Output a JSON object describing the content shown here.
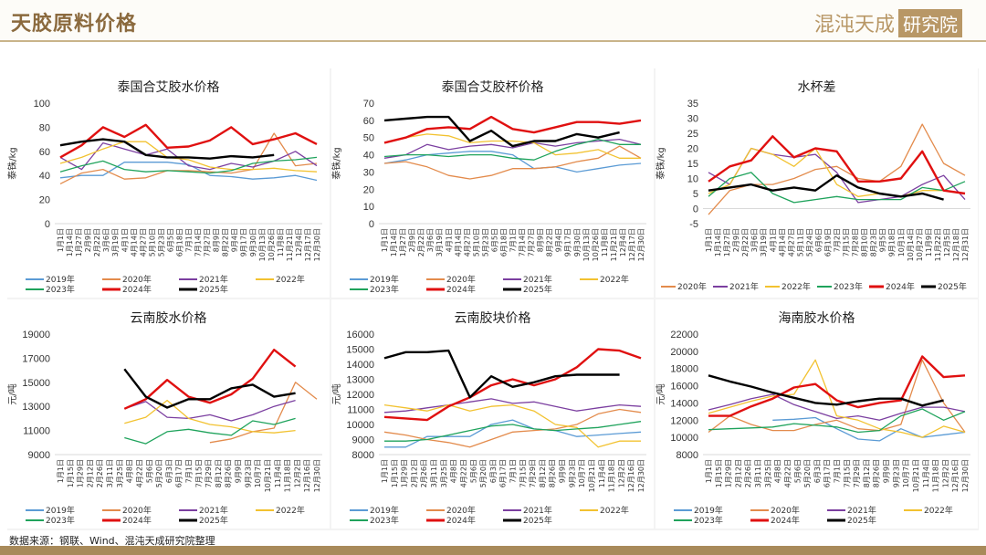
{
  "header": {
    "title": "天胶原料价格",
    "logo_text": "混沌天成",
    "logo_box": "研究院"
  },
  "footer": {
    "source": "数据来源：钢联、Wind、混沌天成研究院整理"
  },
  "colors": {
    "2019": "#5b9bd5",
    "2020": "#e38b4c",
    "2021": "#7b3fa0",
    "2022": "#f2c230",
    "2023": "#1fa35c",
    "2024": "#e01010",
    "2025": "#000000",
    "accent": "#b89766"
  },
  "chart_data": [
    {
      "type": "line",
      "title": "泰国合艾胶水价格",
      "ylabel": "泰铢/kg",
      "ylim": [
        0,
        100
      ],
      "yticks": [
        0,
        20,
        40,
        60,
        80,
        100
      ],
      "x_labels": [
        "1月1日",
        "1月14日",
        "1月27日",
        "2月9日",
        "2月22日",
        "3月6日",
        "3月19日",
        "4月1日",
        "4月14日",
        "4月27日",
        "5月10日",
        "5月23日",
        "6月5日",
        "6月18日",
        "7月1日",
        "7月14日",
        "7月27日",
        "8月9日",
        "8月22日",
        "9月4日",
        "9月17日",
        "9月30日",
        "10月13日",
        "10月26日",
        "11月8日",
        "11月21日",
        "12月4日",
        "12月17日",
        "12月30日"
      ],
      "legend_rows": 2,
      "series": [
        {
          "name": "2019年",
          "values": [
            38,
            40,
            40,
            51,
            51,
            51,
            49,
            40,
            39,
            37,
            38,
            40,
            36
          ]
        },
        {
          "name": "2020年",
          "values": [
            33,
            42,
            45,
            37,
            38,
            44,
            44,
            43,
            42,
            45,
            75,
            48,
            50
          ]
        },
        {
          "name": "2021年",
          "values": [
            55,
            45,
            67,
            62,
            57,
            62,
            48,
            45,
            50,
            47,
            52,
            60,
            48
          ]
        },
        {
          "name": "2022年",
          "values": [
            50,
            55,
            62,
            68,
            68,
            55,
            53,
            47,
            45,
            45,
            46,
            44,
            43
          ]
        },
        {
          "name": "2023年",
          "values": [
            43,
            48,
            52,
            45,
            43,
            44,
            43,
            42,
            44,
            50,
            52,
            53,
            55
          ]
        },
        {
          "name": "2024年",
          "values": [
            55,
            65,
            80,
            72,
            82,
            63,
            64,
            69,
            80,
            66,
            70,
            75,
            66
          ]
        },
        {
          "name": "2025年",
          "values": [
            65,
            68,
            70,
            68,
            57,
            55,
            55,
            54,
            56,
            55,
            57,
            null,
            null
          ]
        }
      ]
    },
    {
      "type": "line",
      "title": "泰国合艾胶杯价格",
      "ylabel": "泰铢/kg",
      "ylim": [
        0,
        70
      ],
      "yticks": [
        0,
        10,
        20,
        30,
        40,
        50,
        60,
        70
      ],
      "x_labels": [
        "1月1日",
        "1月14日",
        "1月27日",
        "2月9日",
        "2月22日",
        "3月6日",
        "3月19日",
        "4月1日",
        "4月14日",
        "4月27日",
        "5月10日",
        "5月23日",
        "6月5日",
        "6月18日",
        "7月1日",
        "7月14日",
        "7月27日",
        "8月9日",
        "8月22日",
        "9月4日",
        "9月17日",
        "9月30日",
        "10月13日",
        "10月26日",
        "11月8日",
        "11月21日",
        "12月4日",
        "12月17日",
        "12月30日"
      ],
      "legend_rows": 2,
      "series": [
        {
          "name": "2019年",
          "values": [
            35,
            37,
            40,
            41,
            42,
            42,
            40,
            32,
            33,
            30,
            32,
            34,
            35
          ]
        },
        {
          "name": "2020年",
          "values": [
            35,
            36,
            33,
            28,
            26,
            28,
            32,
            32,
            33,
            36,
            38,
            45,
            38
          ]
        },
        {
          "name": "2021年",
          "values": [
            38,
            40,
            46,
            43,
            45,
            46,
            44,
            47,
            45,
            47,
            48,
            49,
            46
          ]
        },
        {
          "name": "2022年",
          "values": [
            47,
            50,
            52,
            51,
            47,
            48,
            48,
            47,
            40,
            41,
            43,
            38,
            38
          ]
        },
        {
          "name": "2023年",
          "values": [
            39,
            40,
            40,
            39,
            40,
            40,
            38,
            37,
            42,
            46,
            49,
            46,
            46
          ]
        },
        {
          "name": "2024年",
          "values": [
            47,
            50,
            55,
            56,
            55,
            62,
            55,
            53,
            56,
            59,
            59,
            58,
            60
          ]
        },
        {
          "name": "2025年",
          "values": [
            60,
            61,
            62,
            62,
            48,
            54,
            45,
            48,
            48,
            52,
            50,
            53,
            null
          ]
        }
      ]
    },
    {
      "type": "line",
      "title": "水杯差",
      "ylabel": "泰铢/kg",
      "ylim": [
        -5,
        35
      ],
      "yticks": [
        -5,
        0,
        5,
        10,
        15,
        20,
        25,
        30,
        35
      ],
      "x_labels": [
        "1月1日",
        "1月14日",
        "1月27日",
        "2月9日",
        "2月22日",
        "3月6日",
        "3月19日",
        "4月1日",
        "4月14日",
        "4月27日",
        "5月11日",
        "5月24日",
        "6月6日",
        "6月19日",
        "7月2日",
        "7月15日",
        "7月28日",
        "8月10日",
        "8月23日",
        "9月5日",
        "9月18日",
        "10月1日",
        "10月14日",
        "10月27日",
        "11月9日",
        "11月22日",
        "12月5日",
        "12月18日",
        "12月31日"
      ],
      "legend_rows": 1,
      "series": [
        {
          "name": "2020年",
          "values": [
            -2,
            6,
            8,
            8,
            10,
            13,
            14,
            10,
            9,
            14,
            28,
            15,
            11
          ]
        },
        {
          "name": "2021年",
          "values": [
            12,
            8,
            20,
            18,
            17,
            18,
            12,
            2,
            3,
            4,
            8,
            11,
            3
          ]
        },
        {
          "name": "2022年",
          "values": [
            5,
            8,
            20,
            18,
            14,
            20,
            8,
            4,
            5,
            4,
            6,
            6,
            5
          ]
        },
        {
          "name": "2023年",
          "values": [
            4,
            10,
            12,
            5,
            2,
            3,
            4,
            3,
            3,
            3,
            7,
            6,
            9
          ]
        },
        {
          "name": "2024年",
          "values": [
            9,
            14,
            16,
            24,
            17,
            20,
            19,
            9,
            9,
            10,
            19,
            6,
            5
          ]
        },
        {
          "name": "2025年",
          "values": [
            6,
            7,
            8,
            6,
            7,
            6,
            11,
            7,
            5,
            4,
            5,
            3,
            null
          ]
        }
      ]
    },
    {
      "type": "line",
      "title": "云南胶水价格",
      "ylabel": "元/吨",
      "ylim": [
        9000,
        19000
      ],
      "yticks": [
        9000,
        11000,
        13000,
        15000,
        17000,
        19000
      ],
      "x_labels": [
        "1月1日",
        "1月15日",
        "1月29日",
        "2月12日",
        "2月26日",
        "3月11日",
        "3月25日",
        "4月8日",
        "4月22日",
        "5月6日",
        "5月20日",
        "6月3日",
        "6月17日",
        "7月1日",
        "7月15日",
        "7月29日",
        "8月12日",
        "8月26日",
        "9月9日",
        "9月23日",
        "10月7日",
        "10月21日",
        "11月4日",
        "11月18日",
        "12月2日",
        "12月16日",
        "12月30日"
      ],
      "legend_rows": 2,
      "series": [
        {
          "name": "2019年",
          "values": [
            null,
            null,
            null,
            null,
            null,
            null,
            null,
            null,
            null,
            null,
            null,
            null,
            null
          ]
        },
        {
          "name": "2020年",
          "values": [
            null,
            null,
            null,
            null,
            null,
            null,
            null,
            10000,
            10300,
            10900,
            11200,
            15000,
            13600
          ]
        },
        {
          "name": "2021年",
          "values": [
            null,
            null,
            null,
            12800,
            13400,
            12100,
            12000,
            12300,
            11800,
            12300,
            13000,
            13500,
            null
          ]
        },
        {
          "name": "2022年",
          "values": [
            null,
            null,
            null,
            11600,
            12100,
            13500,
            12000,
            11500,
            11300,
            10900,
            10800,
            11000,
            null
          ]
        },
        {
          "name": "2023年",
          "values": [
            null,
            null,
            null,
            10400,
            9900,
            10900,
            11100,
            10800,
            10600,
            11800,
            11500,
            12000,
            null
          ]
        },
        {
          "name": "2024年",
          "values": [
            null,
            null,
            null,
            12800,
            13600,
            15200,
            13800,
            13300,
            14000,
            15300,
            17700,
            16300,
            null
          ]
        },
        {
          "name": "2025年",
          "values": [
            null,
            null,
            null,
            16100,
            13800,
            12900,
            13600,
            13600,
            14500,
            14800,
            13800,
            14100,
            null
          ]
        }
      ]
    },
    {
      "type": "line",
      "title": "云南胶块价格",
      "ylabel": "元/吨",
      "ylim": [
        8000,
        16000
      ],
      "yticks": [
        8000,
        9000,
        10000,
        11000,
        12000,
        13000,
        14000,
        15000,
        16000
      ],
      "x_labels": [
        "1月1日",
        "1月15日",
        "1月29日",
        "2月12日",
        "2月26日",
        "3月11日",
        "3月25日",
        "4月8日",
        "4月22日",
        "5月6日",
        "5月20日",
        "6月3日",
        "6月17日",
        "7月1日",
        "7月15日",
        "7月29日",
        "8月12日",
        "8月26日",
        "9月9日",
        "9月23日",
        "10月7日",
        "10月21日",
        "11月4日",
        "11月18日",
        "12月2日",
        "12月16日",
        "12月30日"
      ],
      "legend_rows": 2,
      "series": [
        {
          "name": "2019年",
          "values": [
            8500,
            8500,
            9200,
            9200,
            9200,
            10000,
            10300,
            9700,
            9600,
            9200,
            9300,
            9400,
            9500
          ]
        },
        {
          "name": "2020年",
          "values": [
            9500,
            9300,
            9000,
            8800,
            8500,
            9000,
            9500,
            9600,
            9700,
            10000,
            10700,
            11000,
            10800
          ]
        },
        {
          "name": "2021年",
          "values": [
            10800,
            10900,
            11100,
            11300,
            11500,
            11700,
            11400,
            11500,
            11200,
            10900,
            11100,
            11300,
            11200
          ]
        },
        {
          "name": "2022年",
          "values": [
            11300,
            11100,
            10900,
            11300,
            10900,
            11200,
            11300,
            10900,
            10000,
            9800,
            8500,
            8900,
            8900
          ]
        },
        {
          "name": "2023年",
          "values": [
            8900,
            8900,
            9000,
            9300,
            9600,
            9900,
            10000,
            9700,
            9600,
            9700,
            9800,
            10000,
            10200
          ]
        },
        {
          "name": "2024年",
          "values": [
            10500,
            10400,
            10300,
            11200,
            11800,
            12600,
            13000,
            12600,
            13000,
            13800,
            15000,
            14900,
            14400
          ]
        },
        {
          "name": "2025年",
          "values": [
            14400,
            14800,
            14800,
            14900,
            11800,
            13200,
            12500,
            12800,
            13200,
            13300,
            13300,
            13300,
            null
          ]
        }
      ]
    },
    {
      "type": "line",
      "title": "海南胶水价格",
      "ylabel": "元/吨",
      "ylim": [
        8000,
        22000
      ],
      "yticks": [
        8000,
        10000,
        12000,
        14000,
        16000,
        18000,
        20000,
        22000
      ],
      "x_labels": [
        "1月1日",
        "1月15日",
        "1月29日",
        "2月12日",
        "2月26日",
        "3月11日",
        "3月25日",
        "4月8日",
        "4月22日",
        "5月6日",
        "5月20日",
        "6月3日",
        "6月17日",
        "7月1日",
        "7月15日",
        "7月29日",
        "8月12日",
        "8月26日",
        "9月9日",
        "9月23日",
        "10月7日",
        "10月21日",
        "11月4日",
        "11月18日",
        "12月2日",
        "12月16日",
        "12月30日"
      ],
      "legend_rows": 2,
      "series": [
        {
          "name": "2019年",
          "values": [
            null,
            null,
            null,
            12000,
            12100,
            12300,
            11000,
            9800,
            9600,
            11000,
            10000,
            10300,
            10600
          ]
        },
        {
          "name": "2020年",
          "values": [
            10600,
            12500,
            11500,
            10800,
            10800,
            11500,
            12000,
            11000,
            10800,
            11500,
            19000,
            14000,
            10600
          ]
        },
        {
          "name": "2021年",
          "values": [
            13200,
            13800,
            14500,
            15000,
            13800,
            13000,
            12200,
            12500,
            12000,
            12800,
            13500,
            13500,
            13000
          ]
        },
        {
          "name": "2022年",
          "values": [
            12800,
            13500,
            14200,
            14800,
            15000,
            19000,
            12500,
            12000,
            11000,
            10600,
            10000,
            11300,
            10600
          ]
        },
        {
          "name": "2023年",
          "values": [
            10900,
            11000,
            11100,
            11200,
            11600,
            11400,
            11200,
            10600,
            10800,
            12500,
            13300,
            12000,
            13000
          ]
        },
        {
          "name": "2024年",
          "values": [
            12500,
            12500,
            13600,
            14500,
            15800,
            16200,
            14300,
            13500,
            14000,
            14300,
            19400,
            17000,
            17200
          ]
        },
        {
          "name": "2025年",
          "values": [
            17200,
            16500,
            15900,
            15200,
            14600,
            14000,
            13800,
            14200,
            14500,
            14500,
            13700,
            14300,
            null
          ]
        }
      ]
    }
  ]
}
